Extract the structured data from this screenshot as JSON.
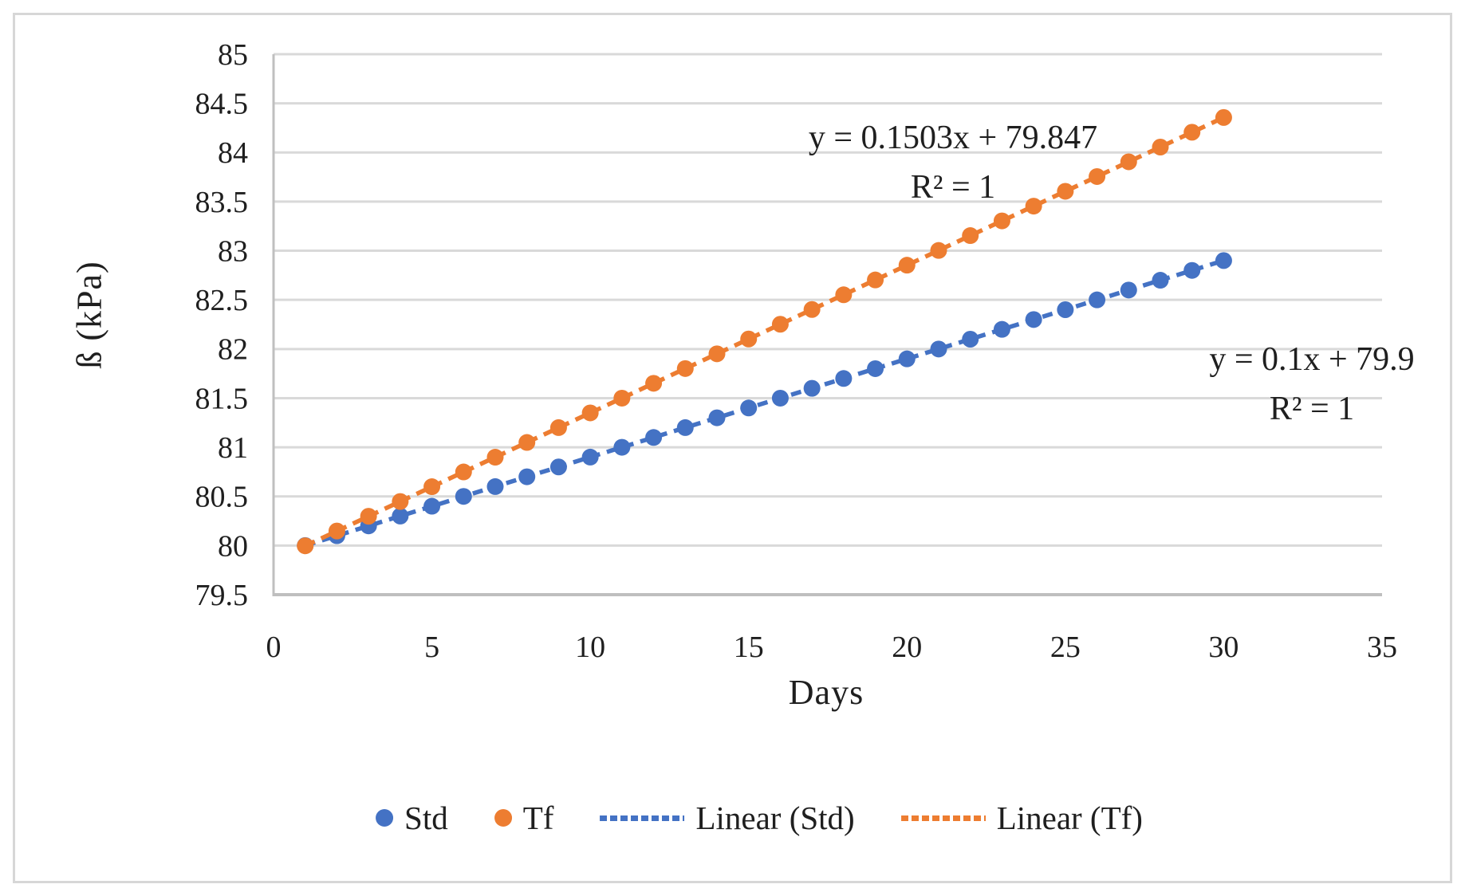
{
  "figure": {
    "background_color": "#ffffff",
    "border_color": "#d7d7d7",
    "text_color": "#1f1f1f"
  },
  "chart_data": {
    "type": "scatter",
    "title": "",
    "xlabel": "Days",
    "ylabel": "ß (kPa)",
    "xlim": [
      0,
      35
    ],
    "ylim": [
      79.5,
      85
    ],
    "x_ticks": [
      0,
      5,
      10,
      15,
      20,
      25,
      30,
      35
    ],
    "x_tick_labels": [
      "0",
      "5",
      "10",
      "15",
      "20",
      "25",
      "30",
      "35"
    ],
    "y_ticks": [
      85,
      84.5,
      84,
      83.5,
      83,
      82.5,
      82,
      81.5,
      81,
      80.5,
      80,
      79.5
    ],
    "y_tick_labels": [
      "85",
      "84.5",
      "84",
      "83.5",
      "83",
      "82.5",
      "82",
      "81.5",
      "81",
      "80.5",
      "80",
      "79.5"
    ],
    "grid": "horizontal",
    "gridline_color": "#d9d9d9",
    "axis_color": "#bfbfbf",
    "x": [
      1,
      2,
      3,
      4,
      5,
      6,
      7,
      8,
      9,
      10,
      11,
      12,
      13,
      14,
      15,
      16,
      17,
      18,
      19,
      20,
      21,
      22,
      23,
      24,
      25,
      26,
      27,
      28,
      29,
      30
    ],
    "series": [
      {
        "name": "Std",
        "color": "#4472C4",
        "marker": "circle",
        "values": [
          80,
          80.1,
          80.2,
          80.3,
          80.4,
          80.5,
          80.6,
          80.7,
          80.8,
          80.9,
          81,
          81.1,
          81.2,
          81.3,
          81.4,
          81.5,
          81.6,
          81.7,
          81.8,
          81.9,
          82,
          82.1,
          82.2,
          82.3,
          82.4,
          82.5,
          82.6,
          82.7,
          82.8,
          82.9
        ],
        "trendline": {
          "type": "linear",
          "slope": 0.1,
          "intercept": 79.9,
          "equation": "y = 0.1x + 79.9",
          "r_squared": "R² = 1",
          "style": "dashed"
        }
      },
      {
        "name": "Tf",
        "color": "#ED7D31",
        "marker": "circle",
        "values": [
          79.997,
          80.148,
          80.298,
          80.448,
          80.599,
          80.749,
          80.899,
          81.049,
          81.2,
          81.35,
          81.5,
          81.651,
          81.801,
          81.951,
          82.102,
          82.252,
          82.402,
          82.552,
          82.703,
          82.853,
          83.003,
          83.154,
          83.304,
          83.454,
          83.605,
          83.755,
          83.905,
          84.055,
          84.206,
          84.356
        ],
        "trendline": {
          "type": "linear",
          "slope": 0.1503,
          "intercept": 79.847,
          "equation": "y = 0.1503x + 79.847",
          "r_squared": "R² = 1",
          "style": "dashed"
        }
      }
    ],
    "annotations": [
      {
        "series": "Tf",
        "line1": "y = 0.1503x + 79.847",
        "line2": "R² = 1"
      },
      {
        "series": "Std",
        "line1": "y = 0.1x + 79.9",
        "line2": "R² = 1"
      }
    ],
    "legend": {
      "position": "bottom",
      "items": [
        {
          "label": "Std",
          "type": "marker",
          "color": "#4472C4"
        },
        {
          "label": "Tf",
          "type": "marker",
          "color": "#ED7D31"
        },
        {
          "label": "Linear (Std)",
          "type": "dashed-line",
          "color": "#4472C4"
        },
        {
          "label": "Linear (Tf)",
          "type": "dashed-line",
          "color": "#ED7D31"
        }
      ]
    }
  }
}
